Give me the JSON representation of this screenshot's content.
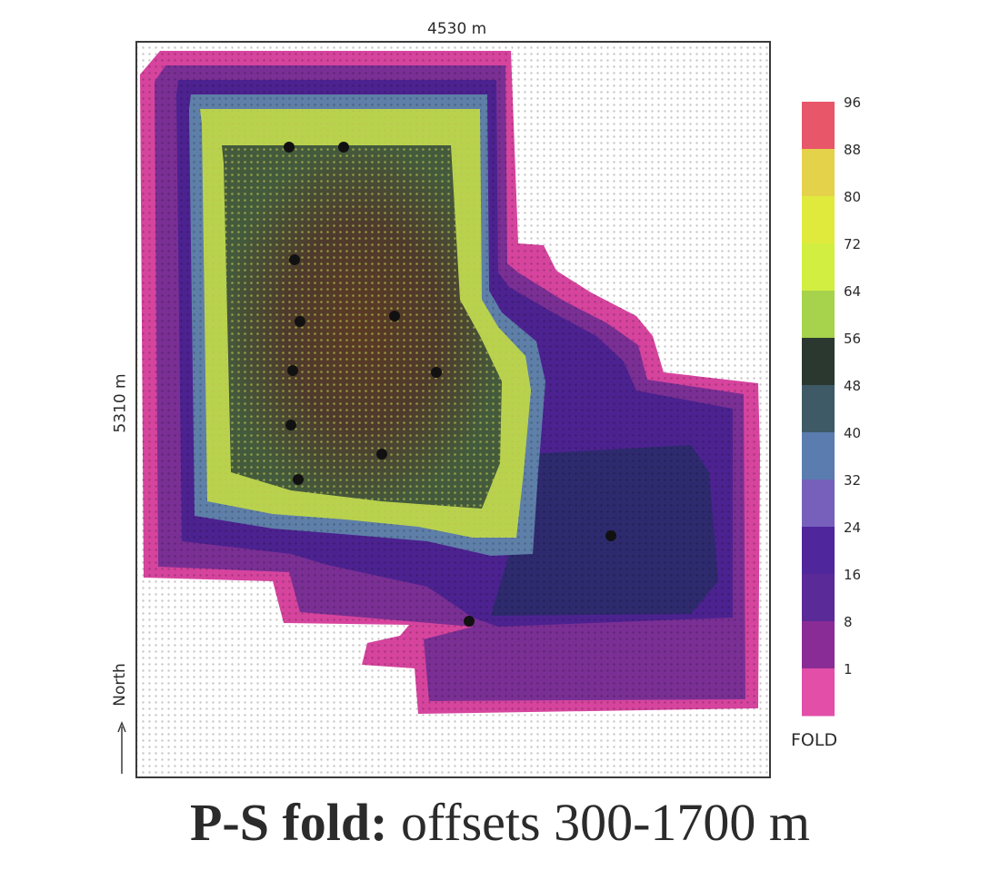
{
  "chart_data": {
    "type": "heatmap",
    "width_label": "4530 m",
    "height_label": "5310 m",
    "north_label": "North",
    "colorbar": {
      "title": "FOLD",
      "ticks": [
        "96",
        "88",
        "80",
        "72",
        "64",
        "56",
        "48",
        "40",
        "32",
        "24",
        "16",
        "8",
        "1"
      ],
      "colors": [
        "#e8566a",
        "#e4d24a",
        "#e0ea3c",
        "#d2ee40",
        "#a6d24c",
        "#2a3830",
        "#3e5a66",
        "#5a7cae",
        "#7660bc",
        "#50269c",
        "#5a2a98",
        "#8a2c96",
        "#e24ea8"
      ]
    },
    "markers": 12
  },
  "caption": {
    "bold": "P-S fold:",
    "rest": " offsets 300-1700 m"
  }
}
